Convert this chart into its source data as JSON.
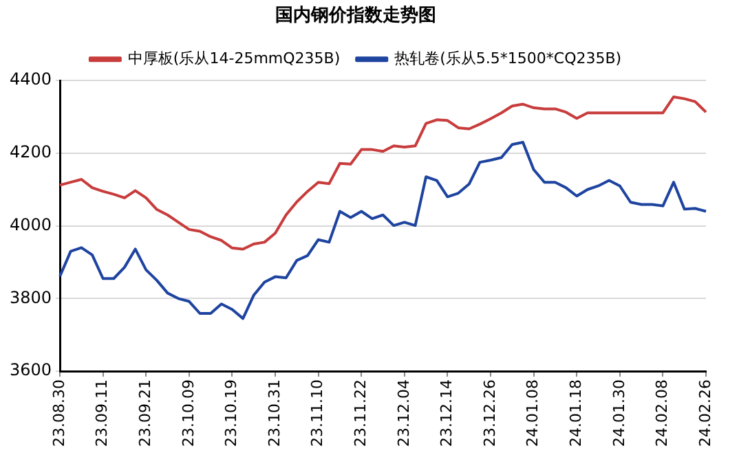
{
  "chart_data": {
    "type": "line",
    "title": "国内钢价指数走势图",
    "categories": [
      "23.08.30",
      null,
      null,
      null,
      "23.09.11",
      null,
      null,
      null,
      "23.09.21",
      null,
      null,
      null,
      "23.10.09",
      null,
      null,
      null,
      "23.10.19",
      null,
      null,
      null,
      "23.10.31",
      null,
      null,
      null,
      "23.11.10",
      null,
      null,
      null,
      "23.11.22",
      null,
      null,
      null,
      "23.12.04",
      null,
      null,
      null,
      "23.12.14",
      null,
      null,
      null,
      "23.12.26",
      null,
      null,
      null,
      "24.01.08",
      null,
      null,
      null,
      "24.01.18",
      null,
      null,
      null,
      "24.01.30",
      null,
      null,
      null,
      "24.02.08",
      null,
      null,
      null,
      "24.02.26"
    ],
    "series": [
      {
        "name": "中厚板(乐从14-25mmQ235B)",
        "color": "#c83c3c",
        "values": [
          4112,
          4120,
          4128,
          4105,
          4095,
          4087,
          4077,
          4097,
          4077,
          4045,
          4030,
          4010,
          3990,
          3985,
          3970,
          3960,
          3939,
          3936,
          3950,
          3955,
          3980,
          4030,
          4066,
          4095,
          4120,
          4116,
          4172,
          4170,
          4210,
          4210,
          4205,
          4220,
          4217,
          4220,
          4282,
          4292,
          4290,
          4270,
          4267,
          4280,
          4295,
          4311,
          4330,
          4335,
          4325,
          4322,
          4322,
          4313,
          4296,
          4311,
          4311,
          4311,
          4311,
          4311,
          4311,
          4311,
          4311,
          4355,
          4350,
          4342,
          4313
        ]
      },
      {
        "name": "热轧卷(乐从5.5*1500*CQ235B)",
        "color": "#1e44a0",
        "values": [
          3861,
          3930,
          3940,
          3920,
          3855,
          3855,
          3886,
          3936,
          3879,
          3850,
          3815,
          3800,
          3792,
          3759,
          3759,
          3785,
          3770,
          3745,
          3809,
          3845,
          3860,
          3857,
          3905,
          3918,
          3962,
          3955,
          4040,
          4023,
          4040,
          4020,
          4030,
          4001,
          4010,
          4001,
          4135,
          4125,
          4080,
          4090,
          4115,
          4175,
          4181,
          4188,
          4224,
          4230,
          4155,
          4120,
          4120,
          4105,
          4082,
          4100,
          4110,
          4125,
          4110,
          4065,
          4059,
          4059,
          4055,
          4120,
          4046,
          4048,
          4040
        ]
      }
    ],
    "ylim": [
      3600,
      4400
    ],
    "yticks": [
      3600,
      3800,
      4000,
      4200,
      4400
    ],
    "grid": "y",
    "legend": "top",
    "marker": "none",
    "line_style": "solid"
  }
}
